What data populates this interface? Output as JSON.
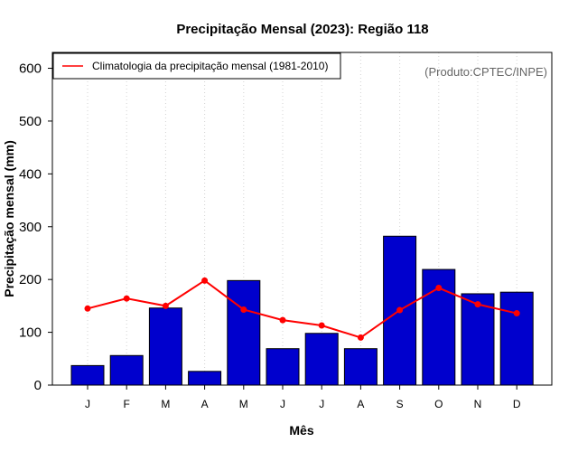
{
  "chart_data": {
    "type": "bar",
    "title": "Precipitação Mensal (2023): Região 118",
    "xlabel": "Mês",
    "ylabel": "Precipitação mensal (mm)",
    "categories": [
      "J",
      "F",
      "M",
      "A",
      "M",
      "J",
      "J",
      "A",
      "S",
      "O",
      "N",
      "D"
    ],
    "ylim": [
      0,
      630
    ],
    "yticks": [
      0,
      100,
      200,
      300,
      400,
      500,
      600
    ],
    "series": [
      {
        "name": "Precipitação mensal 2023",
        "type": "bar",
        "color": "#0000CD",
        "values": [
          37,
          56,
          146,
          26,
          198,
          69,
          98,
          69,
          282,
          219,
          173,
          176
        ]
      },
      {
        "name": "Climatologia da precipitação mensal (1981-2010)",
        "type": "line",
        "color": "#FF0000",
        "values": [
          145,
          164,
          150,
          198,
          143,
          123,
          113,
          90,
          142,
          184,
          153,
          136
        ]
      }
    ],
    "legend": {
      "position": "top-left",
      "label": "Climatologia da precipitação mensal (1981-2010)"
    },
    "grid": "vertical dotted",
    "annotation": "(Produto:CPTEC/INPE)"
  }
}
